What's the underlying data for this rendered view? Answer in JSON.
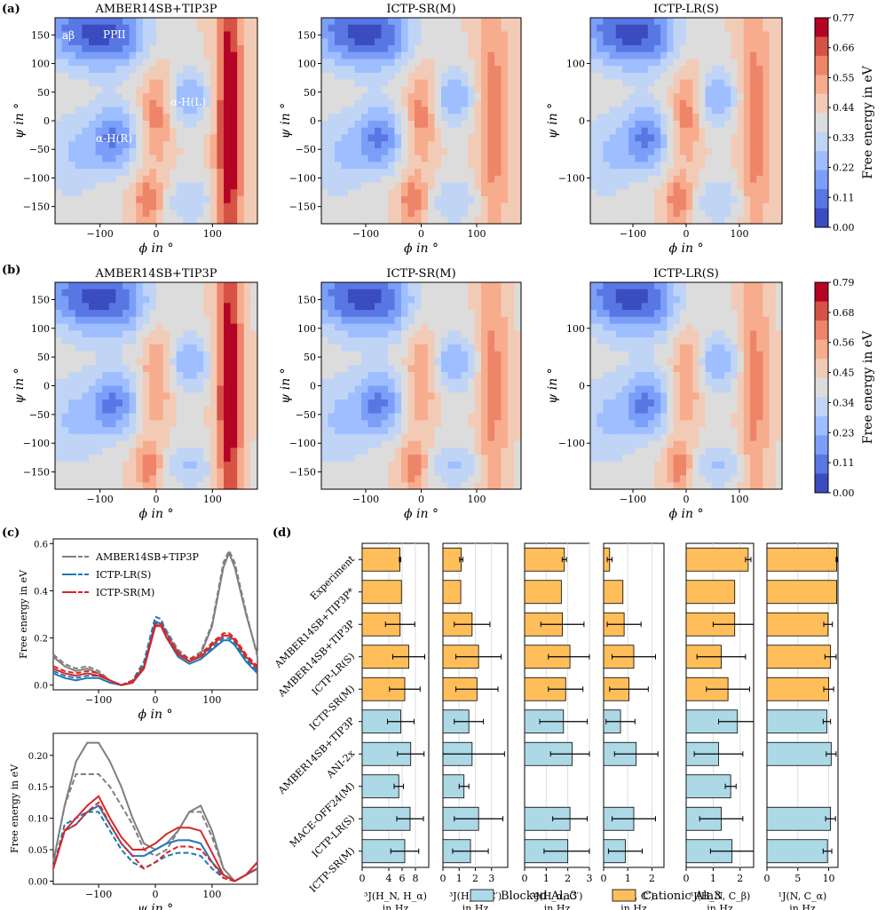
{
  "panel_labels": [
    "(a)",
    "(b)",
    "(c)",
    "(d)"
  ],
  "colors": {
    "blue_cmap": [
      "#3b4cc0",
      "#5977e3",
      "#7b9ff9",
      "#9ebeff",
      "#c0d4f5",
      "#dddcdc",
      "#f2cbb7",
      "#f7ac8e",
      "#ee8468",
      "#d65244",
      "#b40426"
    ],
    "amber": "#7f7f7f",
    "lr": "#1f77b4",
    "sr": "#d62728",
    "blocked": "#add8e6",
    "cationic": "#ffbe5a"
  },
  "chart_data": [
    {
      "type": "heatmap",
      "panel": "(a)",
      "titles": [
        "AMBER14SB+TIP3P",
        "ICTP-SR(M)",
        "ICTP-LR(S)"
      ],
      "xlabel": "ϕ in °",
      "ylabel": "ψ in °",
      "xticks": [
        "−100",
        "0",
        "100"
      ],
      "yticks_left": [
        "150",
        "100",
        "50",
        "0",
        "−50",
        "−100",
        "−150"
      ],
      "yticks_right": [
        "100",
        "0",
        "−100"
      ],
      "region_labels": [
        "aβ",
        "PPII",
        "α-H(L)",
        "α-H(R)"
      ],
      "colorbar": {
        "label": "Free energy in eV",
        "ticks": [
          "0.77",
          "0.66",
          "0.55",
          "0.44",
          "0.33",
          "0.22",
          "0.11",
          "0.00"
        ]
      }
    },
    {
      "type": "heatmap",
      "panel": "(b)",
      "titles": [
        "AMBER14SB+TIP3P",
        "ICTP-SR(M)",
        "ICTP-LR(S)"
      ],
      "xlabel": "ϕ in °",
      "ylabel": "ψ in °",
      "colorbar": {
        "label": "Free energy in eV",
        "ticks": [
          "0.79",
          "0.68",
          "0.56",
          "0.45",
          "0.34",
          "0.23",
          "0.11",
          "0.00"
        ]
      }
    },
    {
      "type": "line",
      "panel": "(c) top",
      "xlabel": "ϕ in °",
      "ylabel": "Free energy in eV",
      "xlim": [
        -180,
        180
      ],
      "ylim": [
        -0.02,
        0.62
      ],
      "xticks": [
        "−100",
        "0",
        "100"
      ],
      "yticks": [
        "0.0",
        "0.2",
        "0.4",
        "0.6"
      ],
      "legend": [
        "AMBER14SB+TIP3P",
        "ICTP-LR(S)",
        "ICTP-SR(M)"
      ],
      "series": [
        {
          "name": "AMBER14SB+TIP3P",
          "style": "solid",
          "x": [
            -180,
            -160,
            -140,
            -120,
            -100,
            -80,
            -60,
            -40,
            -20,
            0,
            10,
            20,
            40,
            60,
            80,
            100,
            120,
            130,
            140,
            160,
            180
          ],
          "y": [
            0.12,
            0.08,
            0.06,
            0.07,
            0.05,
            0.02,
            0.0,
            0.01,
            0.08,
            0.25,
            0.26,
            0.22,
            0.14,
            0.1,
            0.13,
            0.25,
            0.5,
            0.56,
            0.5,
            0.3,
            0.13
          ]
        },
        {
          "name": "AMBER14SB+TIP3P",
          "style": "dashed",
          "x": [
            -180,
            -160,
            -140,
            -120,
            -100,
            -80,
            -60,
            -40,
            -20,
            0,
            10,
            20,
            40,
            60,
            80,
            100,
            120,
            130,
            140,
            160,
            180
          ],
          "y": [
            0.13,
            0.09,
            0.07,
            0.08,
            0.06,
            0.02,
            0.0,
            0.01,
            0.09,
            0.26,
            0.27,
            0.23,
            0.15,
            0.11,
            0.14,
            0.26,
            0.52,
            0.57,
            0.52,
            0.31,
            0.12
          ]
        },
        {
          "name": "ICTP-LR(S)",
          "style": "solid",
          "x": [
            -180,
            -160,
            -140,
            -120,
            -100,
            -80,
            -60,
            -40,
            -20,
            0,
            10,
            20,
            40,
            60,
            80,
            100,
            120,
            130,
            140,
            160,
            180
          ],
          "y": [
            0.05,
            0.03,
            0.02,
            0.03,
            0.03,
            0.01,
            0.0,
            0.01,
            0.08,
            0.27,
            0.26,
            0.2,
            0.12,
            0.09,
            0.11,
            0.15,
            0.19,
            0.19,
            0.17,
            0.1,
            0.05
          ]
        },
        {
          "name": "ICTP-LR(S)",
          "style": "dashed",
          "x": [
            -180,
            -160,
            -140,
            -120,
            -100,
            -80,
            -60,
            -40,
            -20,
            0,
            10,
            20,
            40,
            60,
            80,
            100,
            120,
            130,
            140,
            160,
            180
          ],
          "y": [
            0.06,
            0.04,
            0.03,
            0.04,
            0.04,
            0.02,
            0.0,
            0.02,
            0.1,
            0.29,
            0.28,
            0.22,
            0.13,
            0.1,
            0.12,
            0.16,
            0.2,
            0.2,
            0.18,
            0.11,
            0.06
          ]
        },
        {
          "name": "ICTP-SR(M)",
          "style": "solid",
          "x": [
            -180,
            -160,
            -140,
            -120,
            -100,
            -80,
            -60,
            -40,
            -20,
            0,
            10,
            20,
            40,
            60,
            80,
            100,
            120,
            130,
            140,
            160,
            180
          ],
          "y": [
            0.07,
            0.05,
            0.04,
            0.05,
            0.04,
            0.02,
            0.0,
            0.01,
            0.07,
            0.25,
            0.25,
            0.2,
            0.13,
            0.1,
            0.12,
            0.17,
            0.21,
            0.21,
            0.19,
            0.12,
            0.07
          ]
        },
        {
          "name": "ICTP-SR(M)",
          "style": "dashed",
          "x": [
            -180,
            -160,
            -140,
            -120,
            -100,
            -80,
            -60,
            -40,
            -20,
            0,
            10,
            20,
            40,
            60,
            80,
            100,
            120,
            130,
            140,
            160,
            180
          ],
          "y": [
            0.08,
            0.06,
            0.05,
            0.06,
            0.05,
            0.02,
            0.0,
            0.02,
            0.08,
            0.26,
            0.26,
            0.21,
            0.14,
            0.11,
            0.13,
            0.18,
            0.22,
            0.22,
            0.2,
            0.13,
            0.08
          ]
        }
      ]
    },
    {
      "type": "line",
      "panel": "(c) bottom",
      "xlabel": "ψ in °",
      "ylabel": "Free energy in eV",
      "xlim": [
        -180,
        180
      ],
      "ylim": [
        -0.005,
        0.235
      ],
      "xticks": [
        "−100",
        "0",
        "100"
      ],
      "yticks": [
        "0.00",
        "0.05",
        "0.10",
        "0.15",
        "0.20"
      ],
      "series": [
        {
          "name": "AMBER14SB+TIP3P",
          "style": "solid",
          "x": [
            -180,
            -160,
            -140,
            -120,
            -100,
            -80,
            -60,
            -40,
            -20,
            0,
            20,
            40,
            60,
            80,
            100,
            120,
            140,
            160,
            180
          ],
          "y": [
            0.03,
            0.12,
            0.19,
            0.22,
            0.22,
            0.19,
            0.15,
            0.1,
            0.06,
            0.05,
            0.06,
            0.08,
            0.11,
            0.12,
            0.08,
            0.02,
            0.0,
            0.01,
            0.03
          ]
        },
        {
          "name": "AMBER14SB+TIP3P",
          "style": "dashed",
          "x": [
            -180,
            -160,
            -140,
            -120,
            -100,
            -80,
            -60,
            -40,
            -20,
            0,
            20,
            40,
            60,
            80,
            100,
            120,
            140,
            160,
            180
          ],
          "y": [
            0.03,
            0.12,
            0.17,
            0.17,
            0.17,
            0.15,
            0.12,
            0.09,
            0.05,
            0.04,
            0.05,
            0.08,
            0.11,
            0.11,
            0.07,
            0.02,
            0.0,
            0.01,
            0.03
          ]
        },
        {
          "name": "ICTP-LR(S)",
          "style": "solid",
          "x": [
            -180,
            -160,
            -140,
            -120,
            -100,
            -80,
            -60,
            -40,
            -20,
            0,
            20,
            40,
            60,
            80,
            100,
            120,
            140,
            160,
            180
          ],
          "y": [
            0.02,
            0.08,
            0.09,
            0.11,
            0.12,
            0.09,
            0.06,
            0.04,
            0.04,
            0.05,
            0.06,
            0.065,
            0.065,
            0.06,
            0.03,
            0.01,
            0.0,
            0.01,
            0.02
          ]
        },
        {
          "name": "ICTP-LR(S)",
          "style": "dashed",
          "x": [
            -180,
            -160,
            -140,
            -120,
            -100,
            -80,
            -60,
            -40,
            -20,
            0,
            20,
            40,
            60,
            80,
            100,
            120,
            140,
            160,
            180
          ],
          "y": [
            0.02,
            0.09,
            0.1,
            0.11,
            0.11,
            0.08,
            0.05,
            0.03,
            0.02,
            0.03,
            0.04,
            0.045,
            0.045,
            0.04,
            0.02,
            0.005,
            0.0,
            0.01,
            0.02
          ]
        },
        {
          "name": "ICTP-SR(M)",
          "style": "solid",
          "x": [
            -180,
            -160,
            -140,
            -120,
            -100,
            -80,
            -60,
            -40,
            -20,
            0,
            20,
            40,
            60,
            80,
            100,
            120,
            140,
            160,
            180
          ],
          "y": [
            0.02,
            0.08,
            0.1,
            0.12,
            0.135,
            0.1,
            0.07,
            0.05,
            0.05,
            0.06,
            0.075,
            0.085,
            0.085,
            0.08,
            0.045,
            0.01,
            0.0,
            0.01,
            0.03
          ]
        },
        {
          "name": "ICTP-SR(M)",
          "style": "dashed",
          "x": [
            -180,
            -160,
            -140,
            -120,
            -100,
            -80,
            -60,
            -40,
            -20,
            0,
            20,
            40,
            60,
            80,
            100,
            120,
            140,
            160,
            180
          ],
          "y": [
            0.02,
            0.08,
            0.09,
            0.11,
            0.125,
            0.09,
            0.06,
            0.04,
            0.02,
            0.03,
            0.045,
            0.055,
            0.055,
            0.05,
            0.03,
            0.005,
            0.0,
            0.01,
            0.02
          ]
        }
      ]
    },
    {
      "type": "bar",
      "panel": "(d)",
      "orientation": "horizontal",
      "categories": [
        "Experiment",
        "AMBER14SB+TIP3P*",
        "AMBER14SB+TIP3P",
        "ICTP-LR(S)",
        "ICTP-SR(M)",
        "AMBER14SB+TIP3P",
        "ANI-2x",
        "MACE-OFF24(M)",
        "ICTP-LR(S)",
        "ICTP-SR(M)"
      ],
      "groups": [
        "cationic",
        "cationic",
        "cationic",
        "cationic",
        "cationic",
        "blocked",
        "blocked",
        "blocked",
        "blocked",
        "blocked"
      ],
      "legend": [
        "Blocked Ala3",
        "Cationic Ala3"
      ],
      "subplots": [
        {
          "xlabel": "³J(H_N, H_α) in Hz",
          "xmax": 10,
          "xticks": [
            0,
            4,
            6,
            8
          ],
          "xtick_labels": [
            "0",
            "4",
            "6",
            "8"
          ],
          "values": [
            5.68,
            5.9,
            5.7,
            7.0,
            6.4,
            5.8,
            7.3,
            5.5,
            7.2,
            6.4
          ],
          "errors": [
            0.1,
            null,
            2.2,
            2.4,
            2.3,
            2.0,
            2.0,
            0.7,
            2.0,
            2.1
          ]
        },
        {
          "xlabel": "³J(H_N, C′) in Hz",
          "xmax": 4,
          "xticks": [
            0,
            1,
            2,
            3
          ],
          "xtick_labels": [
            "0",
            "1",
            "2",
            "3"
          ],
          "values": [
            1.13,
            1.1,
            1.8,
            2.2,
            2.1,
            1.6,
            1.8,
            1.3,
            2.2,
            1.7
          ],
          "errors": [
            0.1,
            null,
            1.1,
            1.4,
            1.3,
            0.9,
            2.0,
            0.3,
            1.5,
            1.1
          ]
        },
        {
          "xlabel": "³J(H_α, C′) in Hz",
          "xmax": 3,
          "xticks": [
            0,
            1,
            2,
            3
          ],
          "xtick_labels": [
            "0",
            "1",
            "2",
            "3"
          ],
          "values": [
            1.84,
            1.7,
            1.75,
            2.1,
            1.9,
            1.8,
            2.2,
            null,
            2.1,
            2.0
          ],
          "errors": [
            0.1,
            null,
            1.0,
            1.0,
            0.8,
            1.1,
            1.0,
            null,
            0.8,
            1.1
          ]
        },
        {
          "xlabel": "³J(C′, C′) in Hz",
          "xmax": 2.5,
          "xticks": [
            0,
            1,
            2
          ],
          "xtick_labels": [
            "0",
            "1",
            "2"
          ],
          "values": [
            0.25,
            0.8,
            0.85,
            1.25,
            1.05,
            0.7,
            1.35,
            null,
            1.25,
            0.9
          ],
          "errors": [
            0.1,
            null,
            0.7,
            0.9,
            0.8,
            0.6,
            0.9,
            null,
            0.9,
            0.7
          ]
        },
        {
          "xlabel": "³J(H_N, C_β) in Hz",
          "xmax": 2.5,
          "xticks": [
            0,
            1,
            2
          ],
          "xtick_labels": [
            "0",
            "1",
            "2"
          ],
          "values": [
            2.3,
            1.8,
            1.8,
            1.3,
            1.55,
            1.9,
            1.2,
            1.65,
            1.3,
            1.7
          ],
          "errors": [
            0.1,
            null,
            0.8,
            0.9,
            0.8,
            0.7,
            0.9,
            0.2,
            0.8,
            0.8
          ]
        },
        {
          "xlabel": "¹J(N, C_α) in Hz",
          "xmax": 11.5,
          "xticks": [
            0,
            5,
            10
          ],
          "xtick_labels": [
            "0",
            "5",
            "10"
          ],
          "values": [
            11.3,
            11.3,
            9.9,
            10.3,
            10.0,
            9.7,
            10.4,
            null,
            10.3,
            9.8
          ],
          "errors": [
            0.1,
            null,
            0.7,
            0.9,
            0.8,
            0.6,
            0.8,
            null,
            0.8,
            0.7
          ]
        }
      ]
    }
  ]
}
